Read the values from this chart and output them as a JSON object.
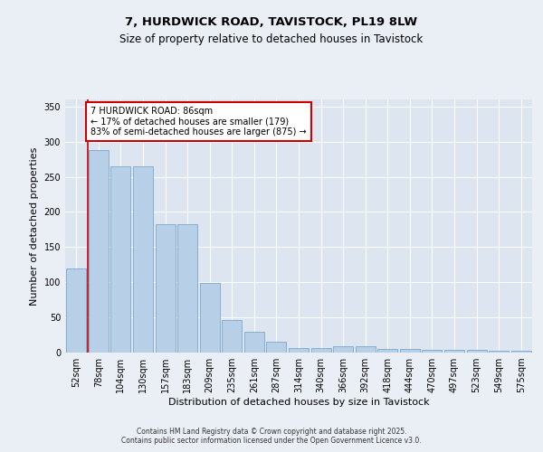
{
  "title1": "7, HURDWICK ROAD, TAVISTOCK, PL19 8LW",
  "title2": "Size of property relative to detached houses in Tavistock",
  "xlabel": "Distribution of detached houses by size in Tavistock",
  "ylabel": "Number of detached properties",
  "categories": [
    "52sqm",
    "78sqm",
    "104sqm",
    "130sqm",
    "157sqm",
    "183sqm",
    "209sqm",
    "235sqm",
    "261sqm",
    "287sqm",
    "314sqm",
    "340sqm",
    "366sqm",
    "392sqm",
    "418sqm",
    "444sqm",
    "470sqm",
    "497sqm",
    "523sqm",
    "549sqm",
    "575sqm"
  ],
  "values": [
    120,
    288,
    265,
    265,
    183,
    183,
    99,
    46,
    30,
    15,
    7,
    7,
    9,
    9,
    5,
    5,
    4,
    4,
    4,
    3,
    2
  ],
  "bar_color": "#b8cfe8",
  "bar_edgecolor": "#6e9ec5",
  "vline_x": 0.5,
  "vline_color": "#cc0000",
  "annotation_text": "7 HURDWICK ROAD: 86sqm\n← 17% of detached houses are smaller (179)\n83% of semi-detached houses are larger (875) →",
  "annotation_box_color": "#cc0000",
  "annotation_facecolor": "white",
  "bg_color": "#eaeff6",
  "plot_bg_color": "#dce5f0",
  "footer": "Contains HM Land Registry data © Crown copyright and database right 2025.\nContains public sector information licensed under the Open Government Licence v3.0.",
  "ylim": [
    0,
    360
  ],
  "yticks": [
    0,
    50,
    100,
    150,
    200,
    250,
    300,
    350
  ],
  "title_fontsize": 9.5,
  "subtitle_fontsize": 8.5,
  "axis_label_fontsize": 8,
  "tick_fontsize": 7,
  "annotation_fontsize": 7,
  "footer_fontsize": 5.5
}
